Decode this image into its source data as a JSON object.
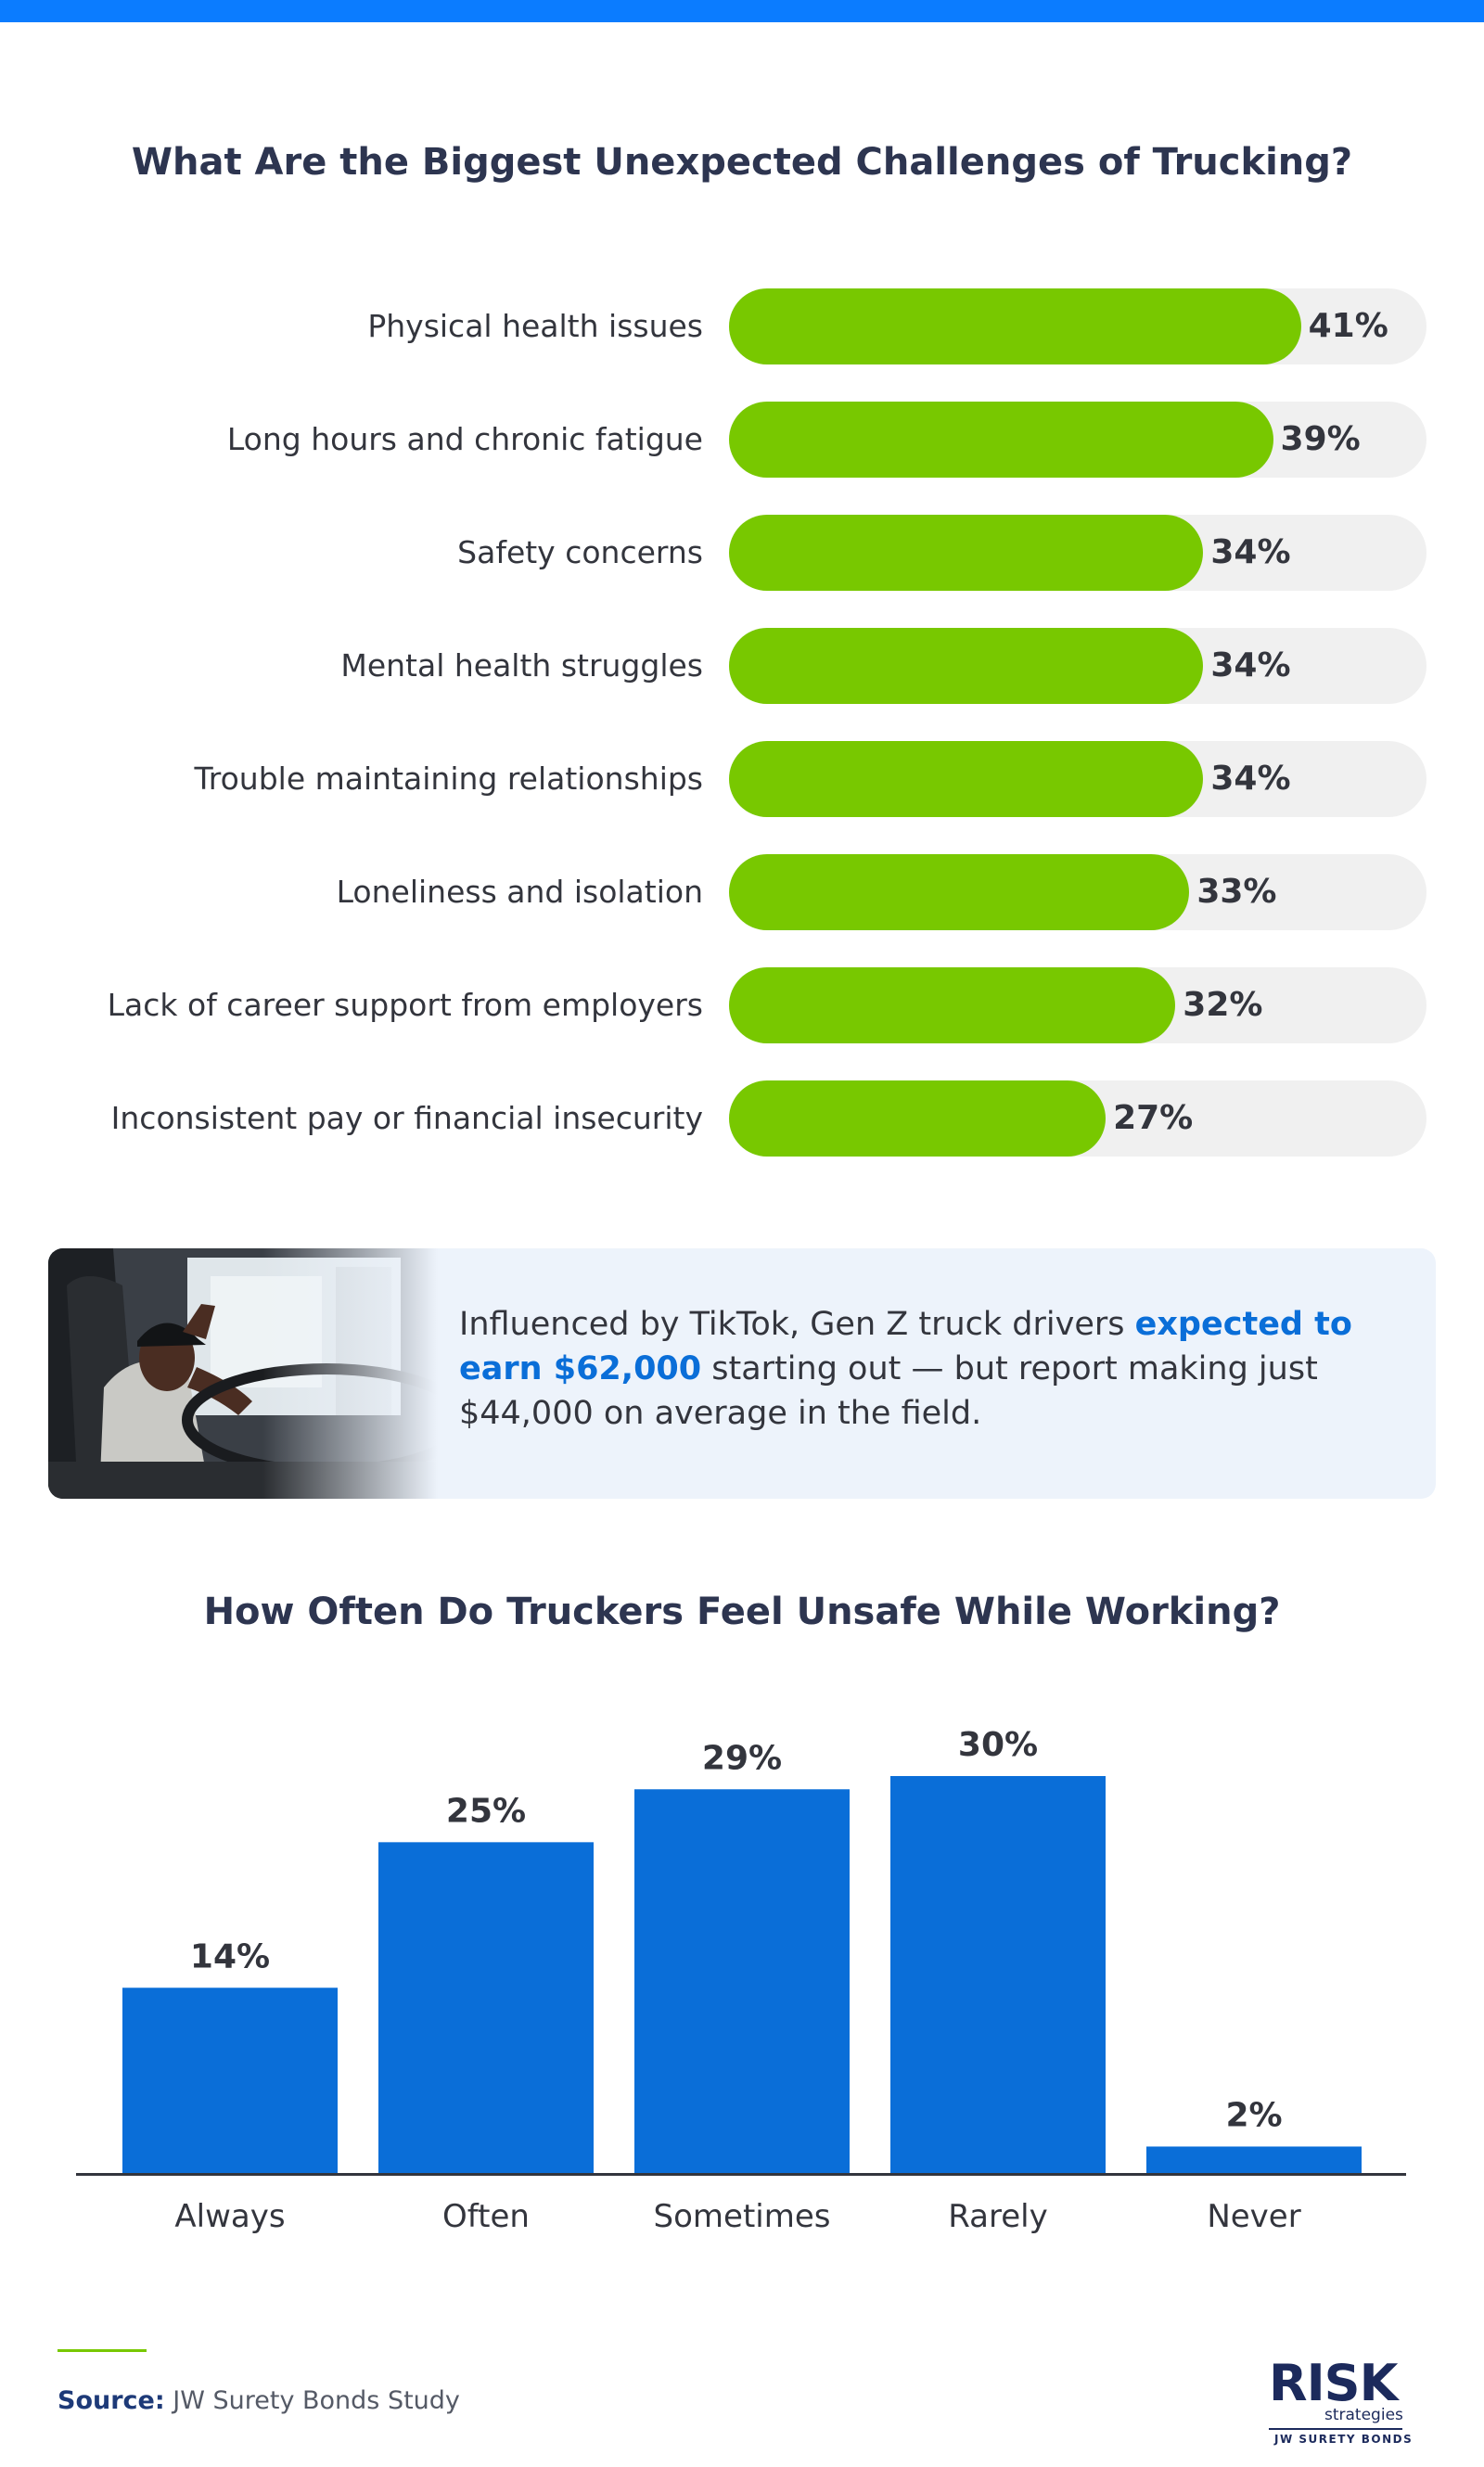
{
  "colors": {
    "top_bar": "#0b7cff",
    "bar_green": "#78c800",
    "bar_track": "#f0f0f0",
    "bar_blue": "#0a6ed8",
    "title": "#2d3550",
    "highlight": "#0a6ed8"
  },
  "chart_data": [
    {
      "type": "bar",
      "orientation": "horizontal",
      "title": "What Are the Biggest Unexpected Challenges of Trucking?",
      "categories": [
        "Physical health issues",
        "Long hours and chronic fatigue",
        "Safety concerns",
        "Mental health struggles",
        "Trouble maintaining relationships",
        "Loneliness and isolation",
        "Lack of career support from employers",
        "Inconsistent pay or financial insecurity"
      ],
      "values": [
        41,
        39,
        34,
        34,
        34,
        33,
        32,
        27
      ],
      "value_labels": [
        "41%",
        "39%",
        "34%",
        "34%",
        "34%",
        "33%",
        "32%",
        "27%"
      ],
      "unit": "%",
      "xlim": [
        0,
        50
      ]
    },
    {
      "type": "bar",
      "orientation": "vertical",
      "title": "How Often Do Truckers Feel Unsafe While Working?",
      "categories": [
        "Always",
        "Often",
        "Sometimes",
        "Rarely",
        "Never"
      ],
      "values": [
        14,
        25,
        29,
        30,
        2
      ],
      "value_labels": [
        "14%",
        "25%",
        "29%",
        "30%",
        "2%"
      ],
      "unit": "%",
      "ylim": [
        0,
        30
      ]
    }
  ],
  "callout": {
    "text_before": "Influenced by TikTok, Gen Z truck drivers ",
    "highlight": "expected to earn $62,000",
    "text_after": " starting out — but report making just $44,000 on average in the field.",
    "photo_icon": "trucker-in-cab-photo"
  },
  "footer": {
    "source_label": "Source:",
    "source_text": "JW Surety Bonds Study",
    "logo_word": "RISK",
    "logo_sub": "strategies",
    "logo_brand": "JW SURETY BONDS"
  }
}
